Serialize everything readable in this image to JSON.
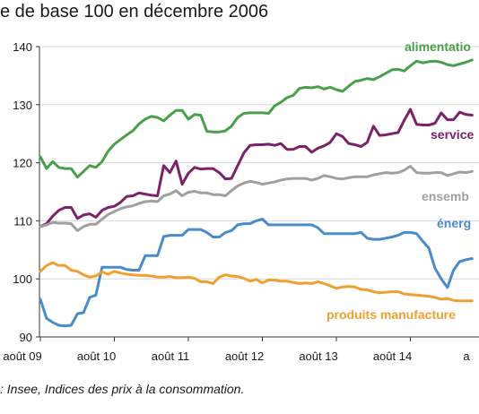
{
  "title": "e de base 100 en décembre 2006",
  "source": ": Insee, Indices des prix à la consommation.",
  "chart_data": {
    "type": "line",
    "ylim": [
      90,
      140
    ],
    "yticks": [
      90,
      100,
      110,
      120,
      130,
      140
    ],
    "xticks": [
      "août 09",
      "août 10",
      "août 11",
      "août 12",
      "août 13",
      "août 14",
      "a"
    ],
    "grid": true,
    "series": [
      {
        "name": "alimentatio",
        "color": "#4aa04a",
        "values": [
          121,
          119,
          120.2,
          119.2,
          119,
          119,
          117.5,
          118.5,
          119.5,
          119.2,
          120.2,
          122,
          123.2,
          124,
          124.8,
          125.5,
          126.7,
          127.5,
          128,
          127.8,
          127.2,
          128.2,
          129,
          129,
          127.5,
          128.3,
          128.2,
          125.4,
          125.3,
          125.3,
          125.5,
          126.3,
          127.8,
          128.5,
          128.6,
          128.6,
          128.6,
          128.5,
          129.8,
          130.4,
          131.2,
          131.6,
          132.8,
          133,
          132.9,
          133.1,
          132.7,
          133,
          132.6,
          132.3,
          133.2,
          134,
          134.2,
          134.5,
          134.3,
          134.8,
          135.4,
          136,
          136.1,
          135.8,
          136.7,
          137.5,
          137.2,
          137.4,
          137.5,
          137.3,
          136.9,
          136.7,
          137,
          137.3,
          137.7
        ]
      },
      {
        "name": "service",
        "color": "#7b2268",
        "values": [
          109,
          109.5,
          110.8,
          111.8,
          112.3,
          112.3,
          110.4,
          111,
          111.2,
          110.6,
          111.8,
          112.3,
          112.5,
          113.2,
          114.2,
          114.3,
          114.8,
          114.6,
          114.4,
          114.3,
          119.5,
          118.3,
          120.3,
          116.3,
          118.2,
          119.2,
          118.9,
          119,
          119,
          118.3,
          117.2,
          117.3,
          119.5,
          121.7,
          123,
          123.1,
          123.1,
          123.2,
          123,
          123.3,
          122.3,
          122.3,
          122.8,
          122.8,
          121.8,
          122.5,
          122.9,
          123.5,
          125,
          124.5,
          123.3,
          123.1,
          122.8,
          123.5,
          126.3,
          124.7,
          124.8,
          125,
          125.2,
          127.3,
          129.2,
          126.6,
          126.5,
          126.5,
          126.8,
          128.6,
          127.4,
          127.4,
          128.7,
          128.3,
          128.2
        ]
      },
      {
        "name": "ensemb",
        "color": "#a0a0a0",
        "values": [
          109,
          109.3,
          109.7,
          109.6,
          109.6,
          109.5,
          108.3,
          109,
          109.4,
          109.4,
          110.3,
          111.1,
          111.6,
          112.1,
          112.4,
          112.6,
          113,
          113.3,
          113.4,
          113.3,
          114.3,
          114.6,
          115.2,
          114.3,
          114.9,
          115.1,
          114.8,
          114.8,
          114.5,
          114.5,
          114.3,
          115.2,
          116,
          116.5,
          116.8,
          116.6,
          116.3,
          116.5,
          116.7,
          117,
          117.2,
          117.3,
          117.3,
          117.3,
          117,
          117.3,
          117.8,
          117.6,
          117.3,
          117.2,
          117.4,
          117.6,
          117.6,
          117.6,
          117.9,
          118.1,
          118.3,
          118.2,
          118.3,
          118.7,
          119.4,
          118.3,
          118.2,
          118.2,
          118.3,
          118.3,
          117.8,
          118.1,
          118.4,
          118.3,
          118.5
        ]
      },
      {
        "name": "énerg",
        "color": "#4a8cc9",
        "values": [
          96.5,
          93.2,
          92.5,
          92,
          91.9,
          92,
          94,
          94.2,
          96.8,
          97.2,
          102,
          102,
          102,
          102,
          101.6,
          101.5,
          101.5,
          104,
          104,
          104,
          107.3,
          107.5,
          107.5,
          107.5,
          108.5,
          108.5,
          108.5,
          108,
          107.2,
          107.2,
          108,
          108.3,
          109.3,
          109.5,
          109.5,
          110,
          110.3,
          109.3,
          109.3,
          109.3,
          109.3,
          109.3,
          109.3,
          109.3,
          109.3,
          108.8,
          107.8,
          107.8,
          107.8,
          107.8,
          107.8,
          107.8,
          108,
          107,
          106.8,
          106.8,
          107,
          107.2,
          107.5,
          108,
          108,
          107.8,
          106.5,
          105.3,
          101.8,
          100,
          98.5,
          101.5,
          103,
          103.3,
          103.5
        ]
      },
      {
        "name": "produits manufacture",
        "color": "#f0a030",
        "values": [
          101.3,
          102.3,
          102.8,
          102.3,
          102.3,
          101.5,
          101.3,
          100.7,
          100.3,
          100.5,
          101.2,
          100.8,
          101.3,
          101,
          100.8,
          100.7,
          100.6,
          100.6,
          100.5,
          100.3,
          100.3,
          100.4,
          100.2,
          100.2,
          100.3,
          100.1,
          99.5,
          99.5,
          99.2,
          100.3,
          100.7,
          100.5,
          100.4,
          100.1,
          99.6,
          99.9,
          99.3,
          99.8,
          99.8,
          99.6,
          99.6,
          99.4,
          99.2,
          99.3,
          99.2,
          99.5,
          99.2,
          98.8,
          98.4,
          98.6,
          98.7,
          98.6,
          98.2,
          98.1,
          97.8,
          97.6,
          97.7,
          97.8,
          97.8,
          97.4,
          97.3,
          97.2,
          97.1,
          97,
          96.8,
          96.5,
          96.6,
          96.3,
          96.2,
          96.2,
          96.2
        ]
      }
    ]
  }
}
